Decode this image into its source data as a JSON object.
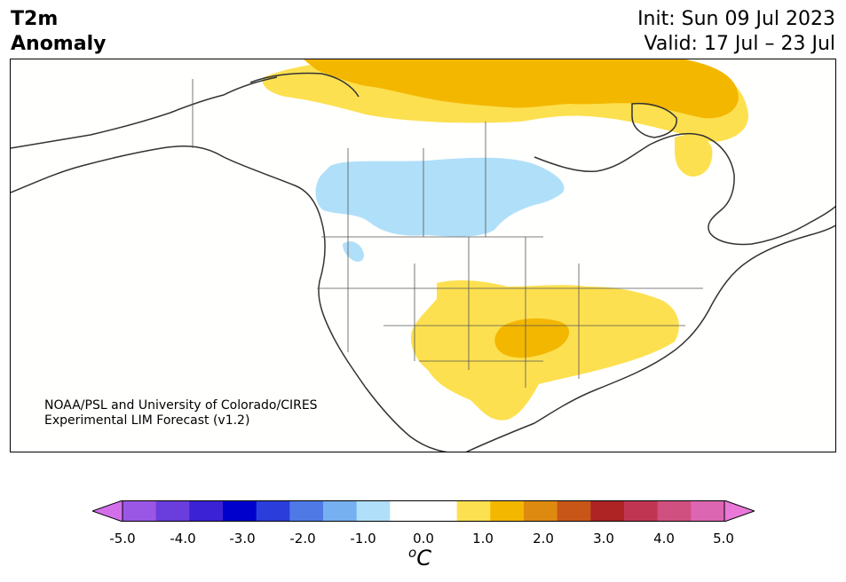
{
  "header": {
    "title_line1": "T2m",
    "title_line2": "Anomaly",
    "init_text": "Init: Sun 09 Jul 2023",
    "valid_text": "Valid: 17 Jul – 23 Jul"
  },
  "credit": {
    "line1": "NOAA/PSL and University of Colorado/CIRES",
    "line2": "Experimental LIM Forecast (v1.2)"
  },
  "colorbar": {
    "tick_labels": [
      "-5.0",
      "-4.0",
      "-3.0",
      "-2.0",
      "-1.0",
      "0.0",
      "1.0",
      "2.0",
      "3.0",
      "4.0",
      "5.0"
    ],
    "unit_base": "C",
    "unit_sup": "o",
    "colors": [
      "#d36fea",
      "#9a56e4",
      "#6a3ddd",
      "#3b22d5",
      "#0000cc",
      "#2b3ddb",
      "#4f7ae6",
      "#76b0f0",
      "#b0dffa",
      "#ffffff",
      "#ffffff",
      "#fde050",
      "#f3b700",
      "#de8a10",
      "#c85618",
      "#ae2424",
      "#c03652",
      "#d05080",
      "#dd66b2",
      "#e978d8"
    ]
  },
  "map": {
    "background": "#ffffff",
    "coast_color": "#333333",
    "fill_colors": {
      "cool": "#b0dffa",
      "warm1": "#fde050",
      "warm2": "#f3b700"
    }
  }
}
